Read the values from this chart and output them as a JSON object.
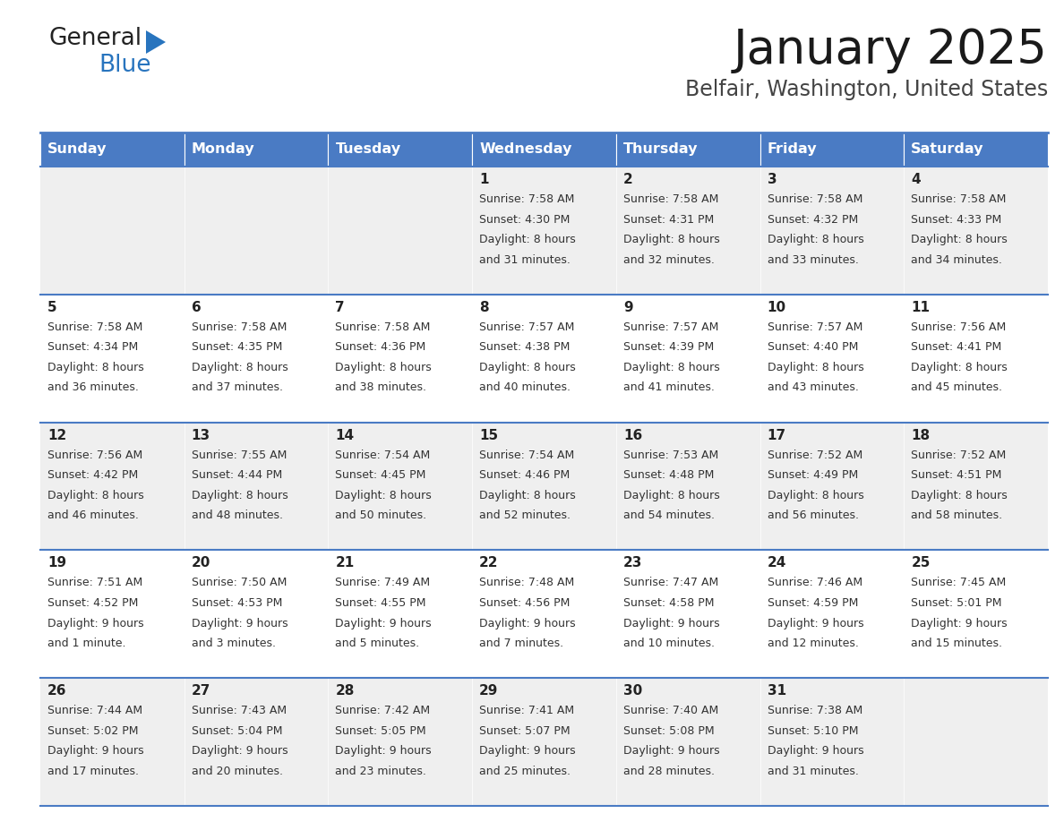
{
  "title": "January 2025",
  "subtitle": "Belfair, Washington, United States",
  "header_color": "#4A7BC4",
  "header_text_color": "#FFFFFF",
  "days_of_week": [
    "Sunday",
    "Monday",
    "Tuesday",
    "Wednesday",
    "Thursday",
    "Friday",
    "Saturday"
  ],
  "bg_color": "#FFFFFF",
  "cell_bg_even": "#EFEFEF",
  "cell_bg_odd": "#FFFFFF",
  "separator_color": "#4A7BC4",
  "text_color": "#333333",
  "calendar_data": [
    [
      {
        "day": "",
        "sunrise": "",
        "sunset": "",
        "daylight": ""
      },
      {
        "day": "",
        "sunrise": "",
        "sunset": "",
        "daylight": ""
      },
      {
        "day": "",
        "sunrise": "",
        "sunset": "",
        "daylight": ""
      },
      {
        "day": "1",
        "sunrise": "7:58 AM",
        "sunset": "4:30 PM",
        "daylight": "8 hours\nand 31 minutes."
      },
      {
        "day": "2",
        "sunrise": "7:58 AM",
        "sunset": "4:31 PM",
        "daylight": "8 hours\nand 32 minutes."
      },
      {
        "day": "3",
        "sunrise": "7:58 AM",
        "sunset": "4:32 PM",
        "daylight": "8 hours\nand 33 minutes."
      },
      {
        "day": "4",
        "sunrise": "7:58 AM",
        "sunset": "4:33 PM",
        "daylight": "8 hours\nand 34 minutes."
      }
    ],
    [
      {
        "day": "5",
        "sunrise": "7:58 AM",
        "sunset": "4:34 PM",
        "daylight": "8 hours\nand 36 minutes."
      },
      {
        "day": "6",
        "sunrise": "7:58 AM",
        "sunset": "4:35 PM",
        "daylight": "8 hours\nand 37 minutes."
      },
      {
        "day": "7",
        "sunrise": "7:58 AM",
        "sunset": "4:36 PM",
        "daylight": "8 hours\nand 38 minutes."
      },
      {
        "day": "8",
        "sunrise": "7:57 AM",
        "sunset": "4:38 PM",
        "daylight": "8 hours\nand 40 minutes."
      },
      {
        "day": "9",
        "sunrise": "7:57 AM",
        "sunset": "4:39 PM",
        "daylight": "8 hours\nand 41 minutes."
      },
      {
        "day": "10",
        "sunrise": "7:57 AM",
        "sunset": "4:40 PM",
        "daylight": "8 hours\nand 43 minutes."
      },
      {
        "day": "11",
        "sunrise": "7:56 AM",
        "sunset": "4:41 PM",
        "daylight": "8 hours\nand 45 minutes."
      }
    ],
    [
      {
        "day": "12",
        "sunrise": "7:56 AM",
        "sunset": "4:42 PM",
        "daylight": "8 hours\nand 46 minutes."
      },
      {
        "day": "13",
        "sunrise": "7:55 AM",
        "sunset": "4:44 PM",
        "daylight": "8 hours\nand 48 minutes."
      },
      {
        "day": "14",
        "sunrise": "7:54 AM",
        "sunset": "4:45 PM",
        "daylight": "8 hours\nand 50 minutes."
      },
      {
        "day": "15",
        "sunrise": "7:54 AM",
        "sunset": "4:46 PM",
        "daylight": "8 hours\nand 52 minutes."
      },
      {
        "day": "16",
        "sunrise": "7:53 AM",
        "sunset": "4:48 PM",
        "daylight": "8 hours\nand 54 minutes."
      },
      {
        "day": "17",
        "sunrise": "7:52 AM",
        "sunset": "4:49 PM",
        "daylight": "8 hours\nand 56 minutes."
      },
      {
        "day": "18",
        "sunrise": "7:52 AM",
        "sunset": "4:51 PM",
        "daylight": "8 hours\nand 58 minutes."
      }
    ],
    [
      {
        "day": "19",
        "sunrise": "7:51 AM",
        "sunset": "4:52 PM",
        "daylight": "9 hours\nand 1 minute."
      },
      {
        "day": "20",
        "sunrise": "7:50 AM",
        "sunset": "4:53 PM",
        "daylight": "9 hours\nand 3 minutes."
      },
      {
        "day": "21",
        "sunrise": "7:49 AM",
        "sunset": "4:55 PM",
        "daylight": "9 hours\nand 5 minutes."
      },
      {
        "day": "22",
        "sunrise": "7:48 AM",
        "sunset": "4:56 PM",
        "daylight": "9 hours\nand 7 minutes."
      },
      {
        "day": "23",
        "sunrise": "7:47 AM",
        "sunset": "4:58 PM",
        "daylight": "9 hours\nand 10 minutes."
      },
      {
        "day": "24",
        "sunrise": "7:46 AM",
        "sunset": "4:59 PM",
        "daylight": "9 hours\nand 12 minutes."
      },
      {
        "day": "25",
        "sunrise": "7:45 AM",
        "sunset": "5:01 PM",
        "daylight": "9 hours\nand 15 minutes."
      }
    ],
    [
      {
        "day": "26",
        "sunrise": "7:44 AM",
        "sunset": "5:02 PM",
        "daylight": "9 hours\nand 17 minutes."
      },
      {
        "day": "27",
        "sunrise": "7:43 AM",
        "sunset": "5:04 PM",
        "daylight": "9 hours\nand 20 minutes."
      },
      {
        "day": "28",
        "sunrise": "7:42 AM",
        "sunset": "5:05 PM",
        "daylight": "9 hours\nand 23 minutes."
      },
      {
        "day": "29",
        "sunrise": "7:41 AM",
        "sunset": "5:07 PM",
        "daylight": "9 hours\nand 25 minutes."
      },
      {
        "day": "30",
        "sunrise": "7:40 AM",
        "sunset": "5:08 PM",
        "daylight": "9 hours\nand 28 minutes."
      },
      {
        "day": "31",
        "sunrise": "7:38 AM",
        "sunset": "5:10 PM",
        "daylight": "9 hours\nand 31 minutes."
      },
      {
        "day": "",
        "sunrise": "",
        "sunset": "",
        "daylight": ""
      }
    ]
  ],
  "figsize": [
    11.88,
    9.18
  ],
  "dpi": 100
}
